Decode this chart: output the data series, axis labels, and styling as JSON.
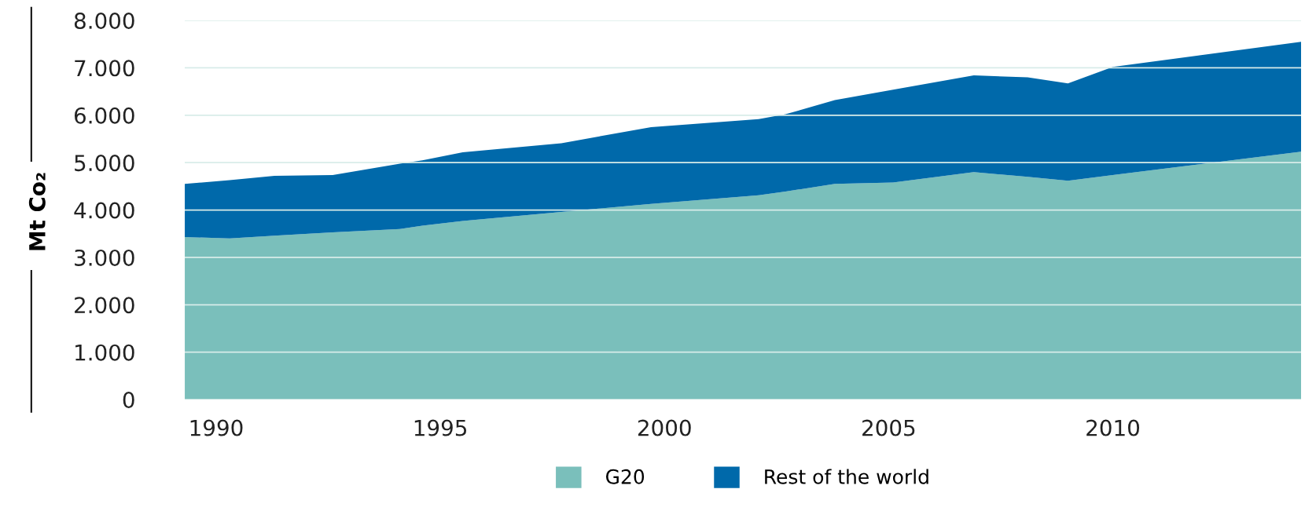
{
  "chart_data": {
    "type": "area",
    "stacked": true,
    "ylabel": "Mt Co₂",
    "x": [
      1989.3,
      1990.3,
      1991.3,
      1992.6,
      1994.1,
      1994.6,
      1995.5,
      1997.7,
      1999.7,
      2002.1,
      2002.7,
      2003.8,
      2005.1,
      2006.9,
      2008.1,
      2009.0,
      2010.0,
      2014.2
    ],
    "series": [
      {
        "name": "G20",
        "color": "#7abfbb",
        "values": [
          3430,
          3400,
          3460,
          3530,
          3600,
          3670,
          3770,
          3960,
          4130,
          4310,
          4390,
          4550,
          4580,
          4800,
          4700,
          4620,
          4740,
          5230
        ]
      },
      {
        "name": "Rest of the world",
        "color": "#0069aa",
        "values": [
          1120,
          1230,
          1260,
          1210,
          1380,
          1380,
          1450,
          1450,
          1620,
          1610,
          1630,
          1770,
          1960,
          2040,
          2100,
          2050,
          2280,
          2320
        ]
      }
    ],
    "xlim": [
      1989.3,
      2014.2
    ],
    "xticks": [
      1990,
      1995,
      2000,
      2005,
      2010
    ],
    "ylim": [
      0,
      8000
    ],
    "yticks": [
      {
        "value": 0,
        "label": "0"
      },
      {
        "value": 1000,
        "label": "1.000"
      },
      {
        "value": 2000,
        "label": "2.000"
      },
      {
        "value": 3000,
        "label": "3.000"
      },
      {
        "value": 4000,
        "label": "4.000"
      },
      {
        "value": 5000,
        "label": "5.000"
      },
      {
        "value": 6000,
        "label": "6.000"
      },
      {
        "value": 7000,
        "label": "7.000"
      },
      {
        "value": 8000,
        "label": "8.000"
      }
    ],
    "grid": "y",
    "legend": "bottom"
  }
}
